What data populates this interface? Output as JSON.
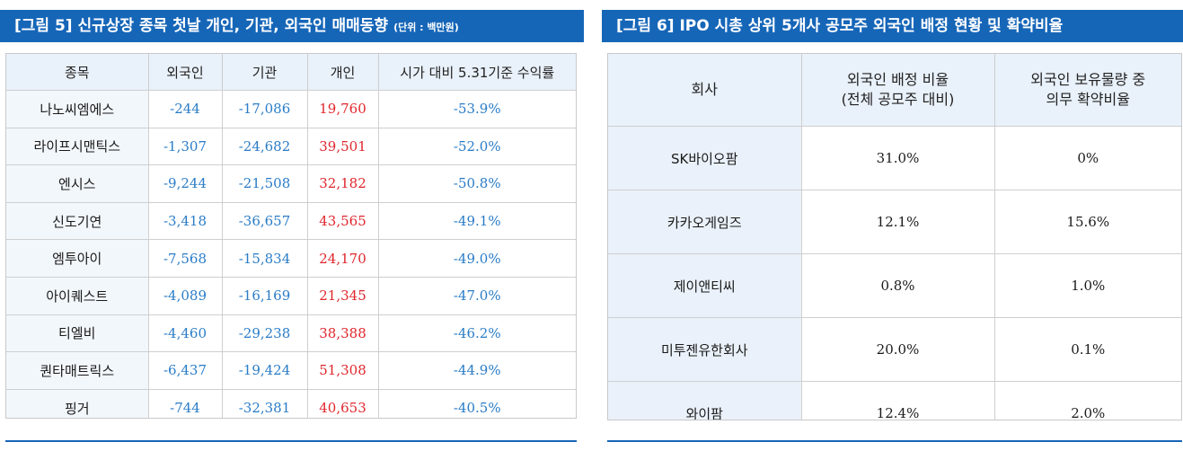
{
  "left": {
    "title": "[그림 5] 신규상장 종목 첫날 개인, 기관, 외국인 매매동향",
    "unit": "(단위 : 백만원)",
    "headers": [
      "종목",
      "외국인",
      "기관",
      "개인",
      "시가 대비 5.31기준 수익률"
    ],
    "rows": [
      [
        "나노씨엠에스",
        "-244",
        "-17,086",
        "19,760",
        "-53.9%"
      ],
      [
        "라이프시맨틱스",
        "-1,307",
        "-24,682",
        "39,501",
        "-52.0%"
      ],
      [
        "엔시스",
        "-9,244",
        "-21,508",
        "32,182",
        "-50.8%"
      ],
      [
        "신도기연",
        "-3,418",
        "-36,657",
        "43,565",
        "-49.1%"
      ],
      [
        "엠투아이",
        "-7,568",
        "-15,834",
        "24,170",
        "-49.0%"
      ],
      [
        "아이퀘스트",
        "-4,089",
        "-16,169",
        "21,345",
        "-47.0%"
      ],
      [
        "티엘비",
        "-4,460",
        "-29,238",
        "38,388",
        "-46.2%"
      ],
      [
        "퀀타매트릭스",
        "-6,437",
        "-19,424",
        "51,308",
        "-44.9%"
      ],
      [
        "핑거",
        "-744",
        "-32,381",
        "40,653",
        "-40.5%"
      ]
    ]
  },
  "right": {
    "title": "[그림 6] IPO 시총 상위 5개사 공모주 외국인 배정 현황 및 확약비율",
    "headers": [
      {
        "line1": "회사",
        "line2": ""
      },
      {
        "line1": "외국인 배정 비율",
        "line2": "(전체 공모주 대비)"
      },
      {
        "line1": "외국인 보유물량 중",
        "line2": "의무 확약비율"
      }
    ],
    "rows": [
      [
        "SK바이오팜",
        "31.0%",
        "0%"
      ],
      [
        "카카오게임즈",
        "12.1%",
        "15.6%"
      ],
      [
        "제이앤티씨",
        "0.8%",
        "1.0%"
      ],
      [
        "미투젠유한회사",
        "20.0%",
        "0.1%"
      ],
      [
        "와이팜",
        "12.4%",
        "2.0%"
      ]
    ]
  },
  "colors": {
    "banner": "#1666b8",
    "header_bg": "#e9f1fa",
    "negative": "#2a7cc7",
    "positive": "#e0262d"
  }
}
